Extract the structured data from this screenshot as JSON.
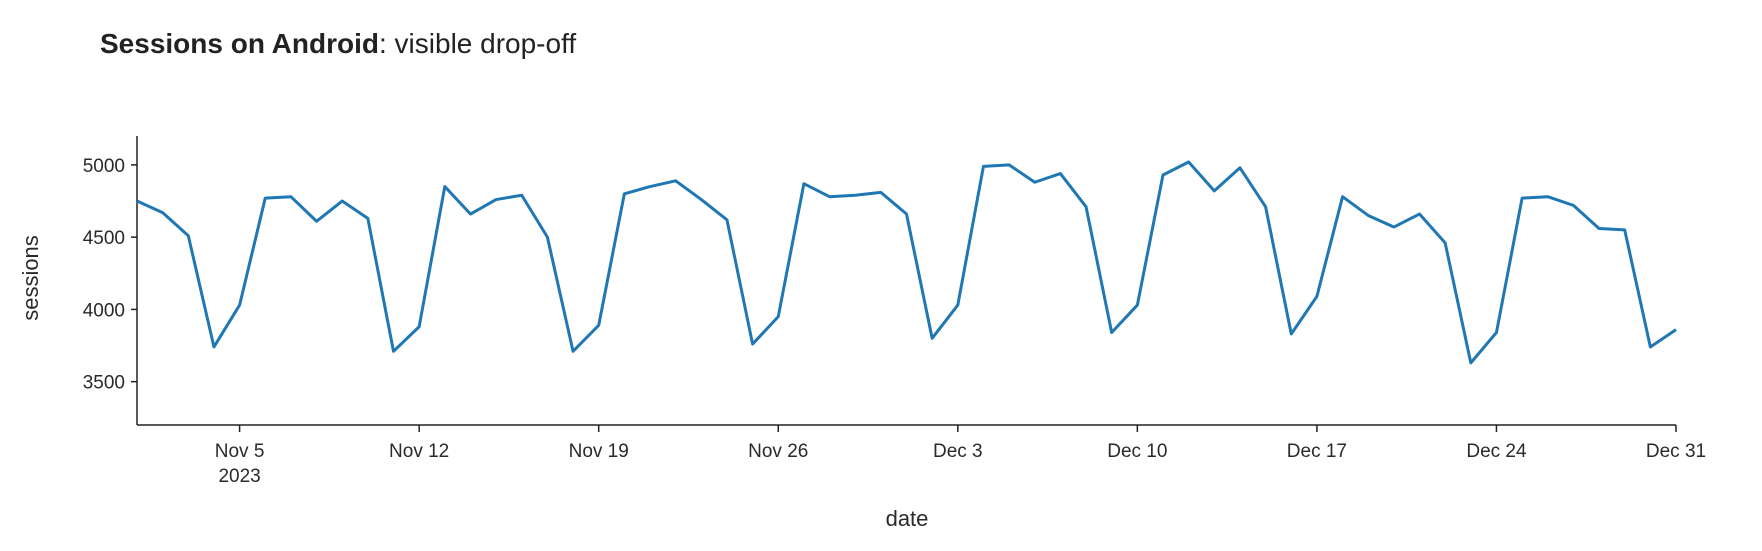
{
  "chart_data": {
    "type": "line",
    "title_bold": "Sessions on Android",
    "title_rest": ": visible drop-off",
    "xlabel": "date",
    "ylabel": "sessions",
    "x_start": "2023-11-01",
    "x_end": "2023-12-31",
    "ylim": [
      3200,
      5200
    ],
    "y_ticks": [
      3500,
      4000,
      4500,
      5000
    ],
    "x_ticks": [
      {
        "date": "2023-11-05",
        "label": "Nov 5",
        "sublabel": "2023"
      },
      {
        "date": "2023-11-12",
        "label": "Nov 12"
      },
      {
        "date": "2023-11-19",
        "label": "Nov 19"
      },
      {
        "date": "2023-11-26",
        "label": "Nov 26"
      },
      {
        "date": "2023-12-03",
        "label": "Dec 3"
      },
      {
        "date": "2023-12-10",
        "label": "Dec 10"
      },
      {
        "date": "2023-12-17",
        "label": "Dec 17"
      },
      {
        "date": "2023-12-24",
        "label": "Dec 24"
      },
      {
        "date": "2023-12-31",
        "label": "Dec 31"
      }
    ],
    "grid": false,
    "series": [
      {
        "color": "#1f77b4",
        "values": [
          4750,
          4670,
          4510,
          3740,
          4030,
          4770,
          4780,
          4610,
          4750,
          4630,
          3710,
          3880,
          4850,
          4660,
          4760,
          4790,
          4500,
          3710,
          3890,
          4800,
          4850,
          4890,
          4760,
          4620,
          3760,
          3950,
          4870,
          4780,
          4790,
          4810,
          4660,
          3800,
          4030,
          4990,
          5000,
          4880,
          4940,
          4710,
          3840,
          4030,
          4930,
          5020,
          4820,
          4980,
          4710,
          3830,
          4090,
          4780,
          4650,
          4570,
          4660,
          4460,
          3630,
          3840,
          4770,
          4780,
          4720,
          4560,
          4550,
          3740,
          3860
        ]
      }
    ]
  }
}
